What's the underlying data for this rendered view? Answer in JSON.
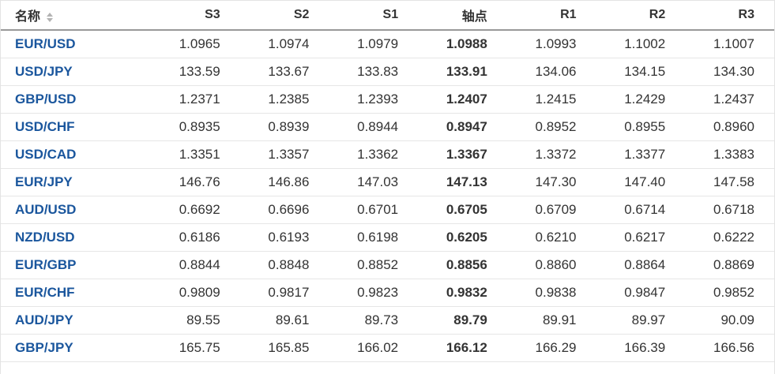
{
  "colors": {
    "background": "#ffffff",
    "pair_link_blue": "#1a569d",
    "header_text": "#333333",
    "number_text": "#333333",
    "header_border": "#999999",
    "row_border": "#e6e6e6",
    "sort_icon_gray": "#b3b3b3"
  },
  "table": {
    "columns": [
      {
        "key": "name",
        "label": "名称"
      },
      {
        "key": "s3",
        "label": "S3"
      },
      {
        "key": "s2",
        "label": "S2"
      },
      {
        "key": "s1",
        "label": "S1"
      },
      {
        "key": "pivot",
        "label": "轴点"
      },
      {
        "key": "r1",
        "label": "R1"
      },
      {
        "key": "r2",
        "label": "R2"
      },
      {
        "key": "r3",
        "label": "R3"
      }
    ],
    "rows": [
      {
        "name": "EUR/USD",
        "s3": "1.0965",
        "s2": "1.0974",
        "s1": "1.0979",
        "pivot": "1.0988",
        "r1": "1.0993",
        "r2": "1.1002",
        "r3": "1.1007"
      },
      {
        "name": "USD/JPY",
        "s3": "133.59",
        "s2": "133.67",
        "s1": "133.83",
        "pivot": "133.91",
        "r1": "134.06",
        "r2": "134.15",
        "r3": "134.30"
      },
      {
        "name": "GBP/USD",
        "s3": "1.2371",
        "s2": "1.2385",
        "s1": "1.2393",
        "pivot": "1.2407",
        "r1": "1.2415",
        "r2": "1.2429",
        "r3": "1.2437"
      },
      {
        "name": "USD/CHF",
        "s3": "0.8935",
        "s2": "0.8939",
        "s1": "0.8944",
        "pivot": "0.8947",
        "r1": "0.8952",
        "r2": "0.8955",
        "r3": "0.8960"
      },
      {
        "name": "USD/CAD",
        "s3": "1.3351",
        "s2": "1.3357",
        "s1": "1.3362",
        "pivot": "1.3367",
        "r1": "1.3372",
        "r2": "1.3377",
        "r3": "1.3383"
      },
      {
        "name": "EUR/JPY",
        "s3": "146.76",
        "s2": "146.86",
        "s1": "147.03",
        "pivot": "147.13",
        "r1": "147.30",
        "r2": "147.40",
        "r3": "147.58"
      },
      {
        "name": "AUD/USD",
        "s3": "0.6692",
        "s2": "0.6696",
        "s1": "0.6701",
        "pivot": "0.6705",
        "r1": "0.6709",
        "r2": "0.6714",
        "r3": "0.6718"
      },
      {
        "name": "NZD/USD",
        "s3": "0.6186",
        "s2": "0.6193",
        "s1": "0.6198",
        "pivot": "0.6205",
        "r1": "0.6210",
        "r2": "0.6217",
        "r3": "0.6222"
      },
      {
        "name": "EUR/GBP",
        "s3": "0.8844",
        "s2": "0.8848",
        "s1": "0.8852",
        "pivot": "0.8856",
        "r1": "0.8860",
        "r2": "0.8864",
        "r3": "0.8869"
      },
      {
        "name": "EUR/CHF",
        "s3": "0.9809",
        "s2": "0.9817",
        "s1": "0.9823",
        "pivot": "0.9832",
        "r1": "0.9838",
        "r2": "0.9847",
        "r3": "0.9852"
      },
      {
        "name": "AUD/JPY",
        "s3": "89.55",
        "s2": "89.61",
        "s1": "89.73",
        "pivot": "89.79",
        "r1": "89.91",
        "r2": "89.97",
        "r3": "90.09"
      },
      {
        "name": "GBP/JPY",
        "s3": "165.75",
        "s2": "165.85",
        "s1": "166.02",
        "pivot": "166.12",
        "r1": "166.29",
        "r2": "166.39",
        "r3": "166.56"
      }
    ]
  }
}
